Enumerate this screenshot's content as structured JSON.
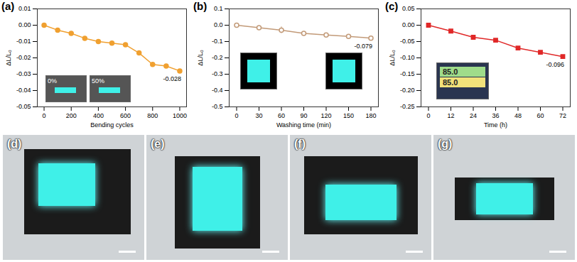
{
  "chart_data": [
    {
      "type": "line",
      "title": "(a)",
      "x_label": "Bending cycles",
      "y_label": "ΔL/L₀",
      "x": [
        0,
        100,
        200,
        300,
        400,
        500,
        600,
        700,
        800,
        900,
        1000
      ],
      "values": [
        0,
        -0.003,
        -0.005,
        -0.008,
        -0.01,
        -0.011,
        -0.012,
        -0.017,
        -0.024,
        -0.025,
        -0.028
      ],
      "xlim": [
        -50,
        1050
      ],
      "xticks": [
        0,
        200,
        400,
        600,
        800,
        1000
      ],
      "ylim": [
        -0.05,
        0.01
      ],
      "yticks": [
        -0.05,
        -0.04,
        -0.03,
        -0.02,
        -0.01,
        {
          "value": 0,
          "label": "0.00"
        },
        0.01
      ],
      "color": "#f0a030",
      "marker": "circle",
      "line_style": "solid",
      "annotations": [
        {
          "x": 1000,
          "y": -0.028,
          "text": "-0.028"
        }
      ],
      "inset_labels": [
        "0%",
        "50%"
      ]
    },
    {
      "type": "line",
      "title": "(b)",
      "x_label": "Washing time (min)",
      "y_label": "ΔL/L₀",
      "x": [
        0,
        30,
        60,
        90,
        120,
        150,
        180
      ],
      "values": [
        0,
        -0.015,
        -0.03,
        -0.05,
        -0.06,
        -0.068,
        -0.079
      ],
      "errors": [
        0,
        0.005,
        0.02,
        0.006,
        0.006,
        0.006,
        0.006
      ],
      "xlim": [
        -10,
        190
      ],
      "xticks": [
        0,
        30,
        60,
        90,
        120,
        150,
        180
      ],
      "ylim": [
        -0.5,
        0.1
      ],
      "yticks": [
        -0.5,
        -0.4,
        -0.3,
        -0.2,
        -0.1,
        {
          "value": 0,
          "label": "0.0"
        },
        0.1
      ],
      "color": "#c29a78",
      "marker": "open-circle",
      "line_style": "solid",
      "annotations": [
        {
          "x": 180,
          "y": -0.079,
          "text": "-0.079"
        }
      ],
      "inset_labels": []
    },
    {
      "type": "line",
      "title": "(c)",
      "x_label": "Time (h)",
      "y_label": "ΔL/L₀",
      "x": [
        0,
        12,
        24,
        36,
        48,
        60,
        72
      ],
      "values": [
        0,
        -0.018,
        -0.037,
        -0.046,
        -0.07,
        -0.083,
        -0.096
      ],
      "xlim": [
        -4,
        76
      ],
      "xticks": [
        0,
        12,
        24,
        36,
        48,
        60,
        72
      ],
      "ylim": [
        -0.25,
        0.05
      ],
      "yticks": [
        -0.25,
        {
          "value": -0.2,
          "label": "-0.20"
        },
        -0.15,
        {
          "value": -0.1,
          "label": "-0.10"
        },
        -0.05,
        {
          "value": 0,
          "label": "0.00"
        },
        0.05
      ],
      "color": "#e02828",
      "marker": "square",
      "line_style": "solid",
      "annotations": [
        {
          "x": 72,
          "y": -0.096,
          "text": "-0.096"
        }
      ],
      "inset_labels": [
        "85.0",
        "85.0"
      ]
    }
  ],
  "photos": [
    {
      "label": "(d)"
    },
    {
      "label": "(e)"
    },
    {
      "label": "(f)"
    },
    {
      "label": "(g)"
    }
  ]
}
